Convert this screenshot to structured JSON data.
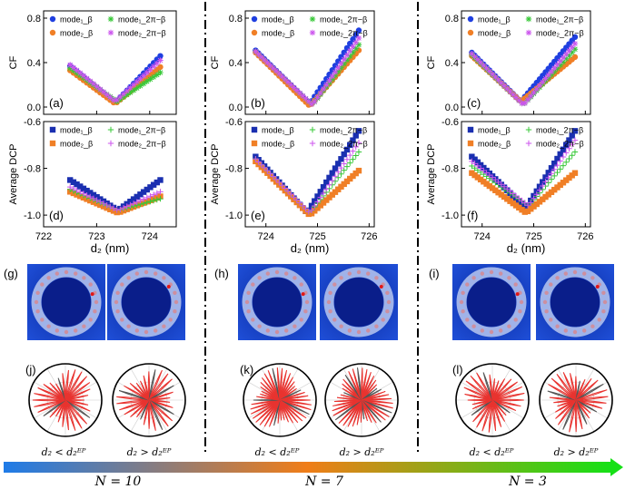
{
  "figure": {
    "x_axis_label": "d",
    "x_axis_subscript": "2",
    "x_axis_unit": "(nm)",
    "cf_ylabel": "CF",
    "dcp_ylabel": "Average DCP",
    "cond_less": "d₂ < d₂ᴱᴾ",
    "cond_greater": "d₂ > d₂ᴱᴾ",
    "n_labels": [
      "N = 10",
      "N = 7",
      "N = 3"
    ],
    "colors": {
      "mode1_beta": "#1f3fe0",
      "mode2_beta": "#f07f26",
      "mode1_2pi": "#37c837",
      "mode2_2pi": "#cc55ee",
      "dcp_mode1_beta": "#1a2fb0",
      "lobe_red": "#e8332f",
      "lobe_gray": "#555555",
      "grad_start": "#1e7be8",
      "grad_mid": "#f07d18",
      "grad_end": "#16e016"
    }
  },
  "chart_data": [
    {
      "id": "cf-n10",
      "type": "scatter",
      "panel_label": "(a)",
      "ylabel": "CF",
      "ylim": [
        0,
        0.8
      ],
      "yticks": [
        "0.0",
        "0.4",
        "0.8"
      ],
      "xlim": [
        722,
        724.5
      ],
      "xticks": [],
      "legend": [
        "mode₁_β",
        "mode₂_β",
        "mode₁_2π−β",
        "mode₂_2π−β"
      ],
      "series": [
        {
          "name": "mode₁_β",
          "marker": "circle",
          "x_start": 722.5,
          "x_end": 724.2,
          "n": 28,
          "left_y": 0.37,
          "min_x": 723.35,
          "min_y": 0.04,
          "right_y": 0.46
        },
        {
          "name": "mode₂_β",
          "marker": "circle",
          "x_start": 722.5,
          "x_end": 724.2,
          "n": 28,
          "left_y": 0.33,
          "min_x": 723.35,
          "min_y": 0.03,
          "right_y": 0.36
        },
        {
          "name": "mode₁_2π−β",
          "marker": "asterisk",
          "x_start": 722.5,
          "x_end": 724.2,
          "n": 28,
          "left_y": 0.35,
          "min_x": 723.38,
          "min_y": 0.05,
          "right_y": 0.31
        },
        {
          "name": "mode₂_2π−β",
          "marker": "asterisk",
          "x_start": 722.5,
          "x_end": 724.2,
          "n": 28,
          "left_y": 0.38,
          "min_x": 723.35,
          "min_y": 0.05,
          "right_y": 0.42
        }
      ]
    },
    {
      "id": "cf-n7",
      "type": "scatter",
      "panel_label": "(b)",
      "ylabel": "CF",
      "ylim": [
        0,
        0.8
      ],
      "yticks": [
        "0.0",
        "0.4",
        "0.8"
      ],
      "xlim": [
        723.6,
        726.1
      ],
      "xticks": [],
      "legend": [
        "mode₁_β",
        "mode₂_β",
        "mode₁_2π−β",
        "mode₂_2π−β"
      ],
      "series": [
        {
          "name": "mode₁_β",
          "marker": "circle",
          "x_start": 723.8,
          "x_end": 725.8,
          "n": 36,
          "left_y": 0.51,
          "min_x": 724.85,
          "min_y": 0.03,
          "right_y": 0.69
        },
        {
          "name": "mode₂_β",
          "marker": "circle",
          "x_start": 723.8,
          "x_end": 725.8,
          "n": 36,
          "left_y": 0.49,
          "min_x": 724.85,
          "min_y": 0.01,
          "right_y": 0.51
        },
        {
          "name": "mode₁_2π−β",
          "marker": "asterisk",
          "x_start": 723.8,
          "x_end": 725.8,
          "n": 36,
          "left_y": 0.5,
          "min_x": 724.9,
          "min_y": 0.02,
          "right_y": 0.56
        },
        {
          "name": "mode₂_2π−β",
          "marker": "asterisk",
          "x_start": 723.8,
          "x_end": 725.8,
          "n": 36,
          "left_y": 0.5,
          "min_x": 724.9,
          "min_y": 0.02,
          "right_y": 0.62
        }
      ]
    },
    {
      "id": "cf-n3",
      "type": "scatter",
      "panel_label": "(c)",
      "ylabel": "CF",
      "ylim": [
        0,
        0.8
      ],
      "yticks": [
        "0.0",
        "0.4",
        "0.8"
      ],
      "xlim": [
        723.6,
        726.1
      ],
      "xticks": [],
      "legend": [
        "mode₁_β",
        "mode₂_β",
        "mode₁_2π−β",
        "mode₂_2π−β"
      ],
      "series": [
        {
          "name": "mode₁_β",
          "marker": "circle",
          "x_start": 723.8,
          "x_end": 725.8,
          "n": 36,
          "left_y": 0.49,
          "min_x": 724.75,
          "min_y": 0.05,
          "right_y": 0.63
        },
        {
          "name": "mode₂_β",
          "marker": "circle",
          "x_start": 723.8,
          "x_end": 725.8,
          "n": 36,
          "left_y": 0.46,
          "min_x": 724.75,
          "min_y": 0.05,
          "right_y": 0.45
        },
        {
          "name": "mode₁_2π−β",
          "marker": "asterisk",
          "x_start": 723.8,
          "x_end": 725.8,
          "n": 36,
          "left_y": 0.47,
          "min_x": 724.8,
          "min_y": 0.02,
          "right_y": 0.52
        },
        {
          "name": "mode₂_2π−β",
          "marker": "asterisk",
          "x_start": 723.8,
          "x_end": 725.8,
          "n": 36,
          "left_y": 0.48,
          "min_x": 724.8,
          "min_y": 0.02,
          "right_y": 0.57
        }
      ]
    },
    {
      "id": "dcp-n10",
      "type": "scatter",
      "panel_label": "(d)",
      "ylabel": "Average DCP",
      "ylim": [
        -1.05,
        -0.6
      ],
      "yticks": [
        "-1.0",
        "-0.8",
        "-0.6"
      ],
      "xlim": [
        722,
        724.5
      ],
      "xticks": [
        "722",
        "723",
        "724"
      ],
      "xlabel": "d₂ (nm)",
      "legend": [
        "mode₁_β",
        "mode₂_β",
        "mode₁_2π−β",
        "mode₂_2π−β"
      ],
      "series": [
        {
          "name": "mode₁_β",
          "marker": "square",
          "x_start": 722.5,
          "x_end": 724.2,
          "n": 28,
          "left_y": -0.85,
          "min_x": 723.4,
          "min_y": -0.98,
          "right_y": -0.85
        },
        {
          "name": "mode₂_β",
          "marker": "square",
          "x_start": 722.5,
          "x_end": 724.2,
          "n": 28,
          "left_y": -0.9,
          "min_x": 723.4,
          "min_y": -0.99,
          "right_y": -0.92
        },
        {
          "name": "mode₁_2π−β",
          "marker": "plus",
          "x_start": 722.5,
          "x_end": 724.2,
          "n": 28,
          "left_y": -0.89,
          "min_x": 723.4,
          "min_y": -0.98,
          "right_y": -0.93
        },
        {
          "name": "mode₂_2π−β",
          "marker": "plus",
          "x_start": 722.5,
          "x_end": 724.2,
          "n": 28,
          "left_y": -0.88,
          "min_x": 723.4,
          "min_y": -0.98,
          "right_y": -0.9
        }
      ]
    },
    {
      "id": "dcp-n7",
      "type": "scatter",
      "panel_label": "(e)",
      "ylabel": "Average DCP",
      "ylim": [
        -1.05,
        -0.6
      ],
      "yticks": [
        "-1.0",
        "-0.8",
        "-0.6"
      ],
      "xlim": [
        723.6,
        726.1
      ],
      "xticks": [
        "724",
        "725",
        "726"
      ],
      "xlabel": "d₂ (nm)",
      "legend": [
        "mode₁_β",
        "mode₂_β",
        "mode₁_2π−β",
        "mode₂_2π−β"
      ],
      "series": [
        {
          "name": "mode₁_β",
          "marker": "square",
          "x_start": 723.8,
          "x_end": 725.8,
          "n": 36,
          "left_y": -0.75,
          "min_x": 724.8,
          "min_y": -0.99,
          "right_y": -0.64
        },
        {
          "name": "mode₂_β",
          "marker": "square",
          "x_start": 723.8,
          "x_end": 725.8,
          "n": 36,
          "left_y": -0.77,
          "min_x": 724.85,
          "min_y": -1.0,
          "right_y": -0.81
        },
        {
          "name": "mode₁_2π−β",
          "marker": "plus",
          "x_start": 723.8,
          "x_end": 725.8,
          "n": 36,
          "left_y": -0.76,
          "min_x": 724.85,
          "min_y": -0.99,
          "right_y": -0.73
        },
        {
          "name": "mode₂_2π−β",
          "marker": "plus",
          "x_start": 723.8,
          "x_end": 725.8,
          "n": 36,
          "left_y": -0.76,
          "min_x": 724.85,
          "min_y": -0.99,
          "right_y": -0.69
        }
      ]
    },
    {
      "id": "dcp-n3",
      "type": "scatter",
      "panel_label": "(f)",
      "ylabel": "Average DCP",
      "ylim": [
        -1.05,
        -0.6
      ],
      "yticks": [
        "-1.0",
        "-0.8",
        "-0.6"
      ],
      "xlim": [
        723.6,
        726.1
      ],
      "xticks": [
        "724",
        "725",
        "726"
      ],
      "xlabel": "d₂ (nm)",
      "legend": [
        "mode₁_β",
        "mode₂_β",
        "mode₁_2π−β",
        "mode₂_2π−β"
      ],
      "series": [
        {
          "name": "mode₁_β",
          "marker": "square",
          "x_start": 723.8,
          "x_end": 725.8,
          "n": 36,
          "left_y": -0.75,
          "min_x": 724.85,
          "min_y": -0.97,
          "right_y": -0.64
        },
        {
          "name": "mode₂_β",
          "marker": "square",
          "x_start": 723.8,
          "x_end": 725.8,
          "n": 36,
          "left_y": -0.82,
          "min_x": 724.85,
          "min_y": -0.99,
          "right_y": -0.82
        },
        {
          "name": "mode₁_2π−β",
          "marker": "plus",
          "x_start": 723.8,
          "x_end": 725.8,
          "n": 36,
          "left_y": -0.79,
          "min_x": 724.9,
          "min_y": -0.96,
          "right_y": -0.73
        },
        {
          "name": "mode₂_2π−β",
          "marker": "plus",
          "x_start": 723.8,
          "x_end": 725.8,
          "n": 36,
          "left_y": -0.77,
          "min_x": 724.9,
          "min_y": -0.96,
          "right_y": -0.68
        }
      ]
    }
  ],
  "field_maps": [
    {
      "panel_label": "(g)"
    },
    {
      "panel_label": "(h)"
    },
    {
      "panel_label": "(i)"
    }
  ],
  "polar_plots": [
    {
      "panel_label": "(j)",
      "lobes": 30
    },
    {
      "panel_label": "(k)",
      "lobes": 42
    },
    {
      "panel_label": "(l)",
      "lobes": 30
    }
  ]
}
